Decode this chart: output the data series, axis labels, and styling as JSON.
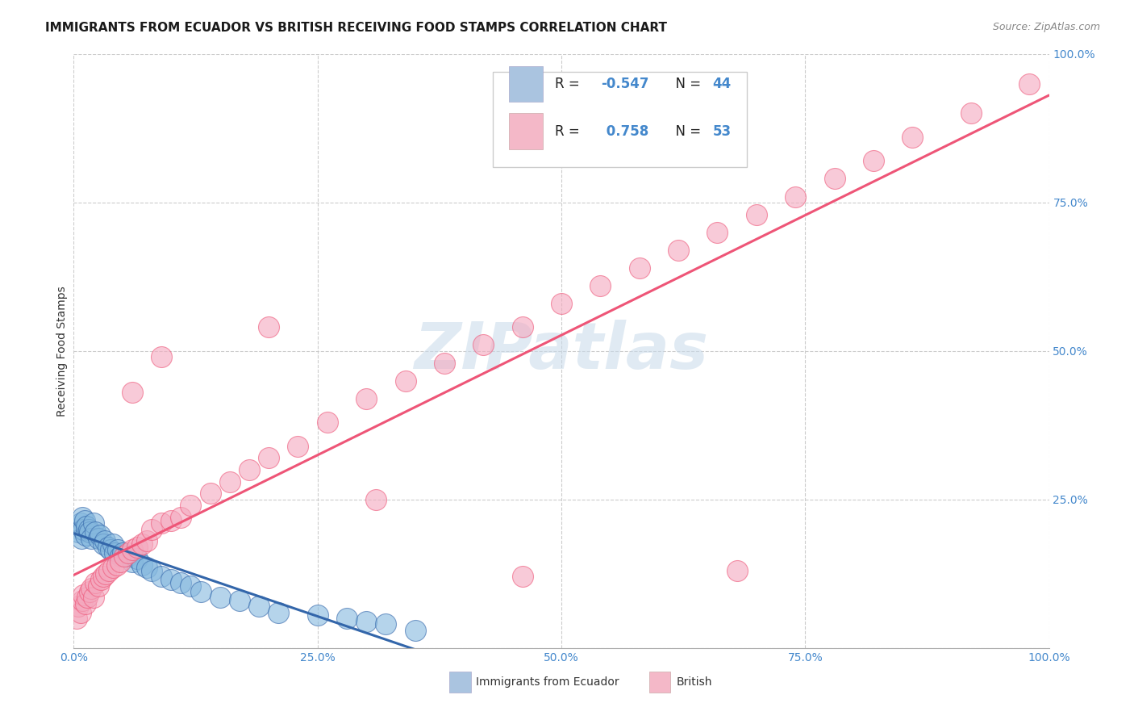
{
  "title": "IMMIGRANTS FROM ECUADOR VS BRITISH RECEIVING FOOD STAMPS CORRELATION CHART",
  "source": "Source: ZipAtlas.com",
  "ylabel": "Receiving Food Stamps",
  "xlim": [
    0,
    1
  ],
  "ylim": [
    0,
    1
  ],
  "xticks": [
    0.0,
    0.25,
    0.5,
    0.75,
    1.0
  ],
  "xticklabels": [
    "0.0%",
    "25.0%",
    "50.0%",
    "75.0%",
    "100.0%"
  ],
  "ytick_positions": [
    0.0,
    0.25,
    0.5,
    0.75,
    1.0
  ],
  "yticklabels": [
    "",
    "25.0%",
    "50.0%",
    "75.0%",
    "100.0%"
  ],
  "background_color": "#ffffff",
  "grid_color": "#cccccc",
  "watermark": "ZIPatlas",
  "legend1_color": "#aac4e0",
  "legend2_color": "#f4b8c8",
  "scatter_ecuador_color": "#85b8de",
  "scatter_british_color": "#f4a8be",
  "line_ecuador_color": "#3366aa",
  "line_british_color": "#ee5577",
  "R_ecuador": -0.547,
  "N_ecuador": 44,
  "R_british": 0.758,
  "N_british": 53,
  "ecuador_x": [
    0.005,
    0.007,
    0.008,
    0.009,
    0.01,
    0.011,
    0.012,
    0.013,
    0.015,
    0.016,
    0.018,
    0.02,
    0.022,
    0.025,
    0.027,
    0.03,
    0.032,
    0.035,
    0.038,
    0.04,
    0.042,
    0.045,
    0.048,
    0.05,
    0.055,
    0.06,
    0.065,
    0.07,
    0.075,
    0.08,
    0.09,
    0.1,
    0.11,
    0.12,
    0.13,
    0.15,
    0.17,
    0.19,
    0.21,
    0.25,
    0.28,
    0.3,
    0.32,
    0.35
  ],
  "ecuador_y": [
    0.195,
    0.21,
    0.185,
    0.22,
    0.2,
    0.215,
    0.19,
    0.205,
    0.2,
    0.195,
    0.185,
    0.21,
    0.195,
    0.185,
    0.19,
    0.175,
    0.18,
    0.17,
    0.165,
    0.175,
    0.16,
    0.165,
    0.155,
    0.16,
    0.155,
    0.145,
    0.15,
    0.14,
    0.135,
    0.13,
    0.12,
    0.115,
    0.11,
    0.105,
    0.095,
    0.085,
    0.08,
    0.07,
    0.06,
    0.055,
    0.05,
    0.045,
    0.04,
    0.03
  ],
  "british_x": [
    0.003,
    0.005,
    0.007,
    0.009,
    0.01,
    0.012,
    0.014,
    0.016,
    0.018,
    0.02,
    0.022,
    0.025,
    0.028,
    0.03,
    0.033,
    0.036,
    0.04,
    0.044,
    0.048,
    0.052,
    0.056,
    0.06,
    0.065,
    0.07,
    0.075,
    0.08,
    0.09,
    0.1,
    0.11,
    0.12,
    0.14,
    0.16,
    0.18,
    0.2,
    0.23,
    0.26,
    0.3,
    0.34,
    0.38,
    0.42,
    0.46,
    0.5,
    0.54,
    0.58,
    0.62,
    0.66,
    0.7,
    0.74,
    0.78,
    0.82,
    0.86,
    0.92,
    0.98
  ],
  "british_y": [
    0.05,
    0.07,
    0.06,
    0.08,
    0.09,
    0.075,
    0.085,
    0.095,
    0.1,
    0.085,
    0.11,
    0.105,
    0.115,
    0.12,
    0.125,
    0.13,
    0.135,
    0.14,
    0.145,
    0.155,
    0.16,
    0.165,
    0.17,
    0.175,
    0.18,
    0.2,
    0.21,
    0.215,
    0.22,
    0.24,
    0.26,
    0.28,
    0.3,
    0.32,
    0.34,
    0.38,
    0.42,
    0.45,
    0.48,
    0.51,
    0.54,
    0.58,
    0.61,
    0.64,
    0.67,
    0.7,
    0.73,
    0.76,
    0.79,
    0.82,
    0.86,
    0.9,
    0.95
  ],
  "british_outlier_x": [
    0.06,
    0.09,
    0.2,
    0.31,
    0.46,
    0.68
  ],
  "british_outlier_y": [
    0.43,
    0.49,
    0.54,
    0.25,
    0.12,
    0.13
  ],
  "title_fontsize": 11,
  "axis_label_fontsize": 10,
  "tick_fontsize": 10,
  "legend_fontsize": 12
}
